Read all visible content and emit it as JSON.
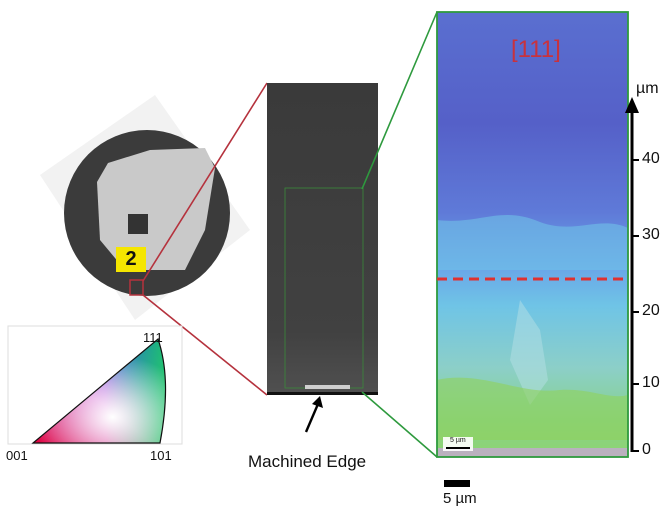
{
  "sample": {
    "label": "2"
  },
  "sem": {
    "caption": "Machined Edge"
  },
  "ebsd": {
    "orientation_label": "[111]",
    "scale_bar_inset": "5 µm",
    "axis_unit": "µm",
    "ticks": [
      "40",
      "30",
      "20",
      "10",
      "0"
    ]
  },
  "ipf": {
    "corner_111": "111",
    "corner_001": "001",
    "corner_101": "101"
  },
  "scale_bar": {
    "label": "5 µm"
  },
  "colors": {
    "red_callout": "#b5323d",
    "green_callout": "#2e9a3e",
    "dashed_line": "#e03030",
    "label_yellow": "#f5e600"
  }
}
